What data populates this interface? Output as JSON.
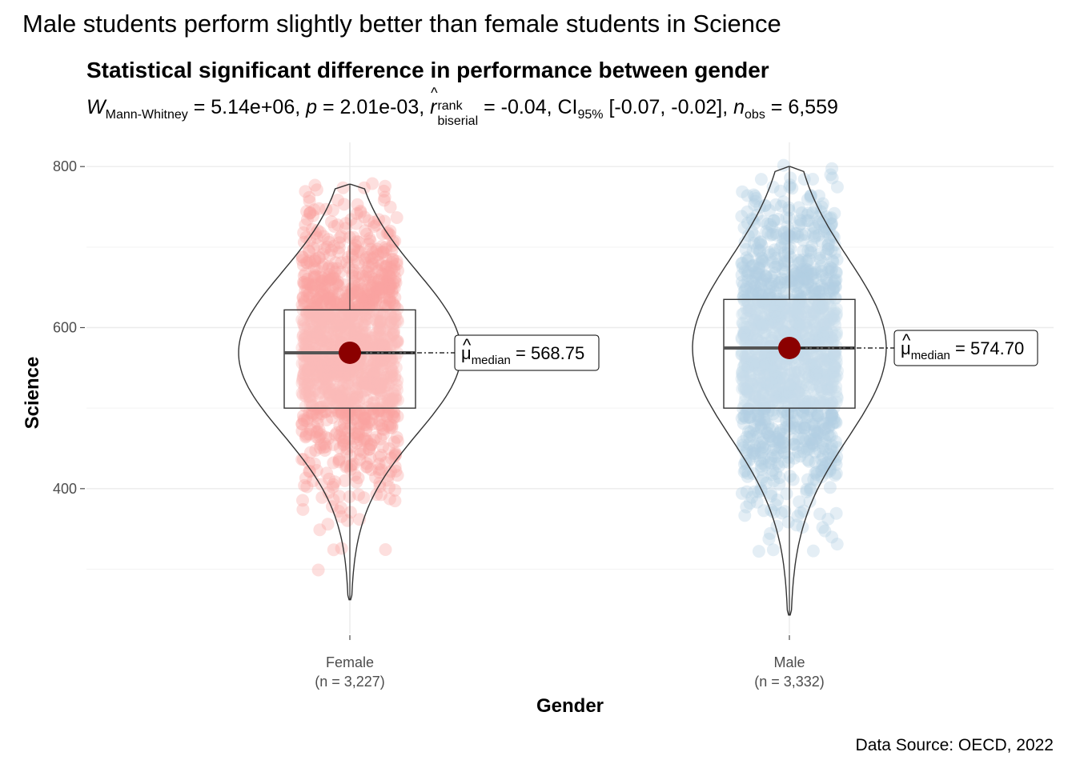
{
  "title": "Male students perform slightly better than female students in Science",
  "subtitle": "Statistical significant difference in performance between gender",
  "stats": {
    "w_symbol": "W",
    "w_sub": "Mann-Whitney",
    "w_value": " = 5.14e+06, ",
    "p_symbol": "p",
    "p_value": " = 2.01e-03, ",
    "r_symbol": "r",
    "r_sup": "rank",
    "r_sub": "biserial",
    "r_value": " = -0.04, CI",
    "ci_sub": "95%",
    "ci_value": " [-0.07, -0.02], ",
    "n_symbol": "n",
    "n_sub": "obs",
    "n_value": " = 6,559"
  },
  "caption": "Data Source: OECD, 2022",
  "chart_data": {
    "type": "violin-box-scatter",
    "xlabel": "Gender",
    "ylabel": "Science",
    "y_ticks": [
      400,
      600,
      800
    ],
    "ylim": [
      220,
      830
    ],
    "grid": true,
    "categories": [
      {
        "name": "Female",
        "n_label": "(n = 3,227)",
        "color": "#f8a3a0",
        "median": 568.75,
        "q1": 500,
        "q3": 622,
        "min": 262,
        "max": 778,
        "point_range": [
          258,
          780
        ],
        "median_label": "568.75"
      },
      {
        "name": "Male",
        "n_label": "(n = 3,332)",
        "color": "#b3cde3",
        "median": 574.7,
        "q1": 500,
        "q3": 635,
        "min": 243,
        "max": 800,
        "point_range": [
          242,
          802
        ],
        "median_label": "574.70"
      }
    ],
    "median_symbol": "μ",
    "median_sub": "median",
    "median_color": "#8b0000"
  }
}
